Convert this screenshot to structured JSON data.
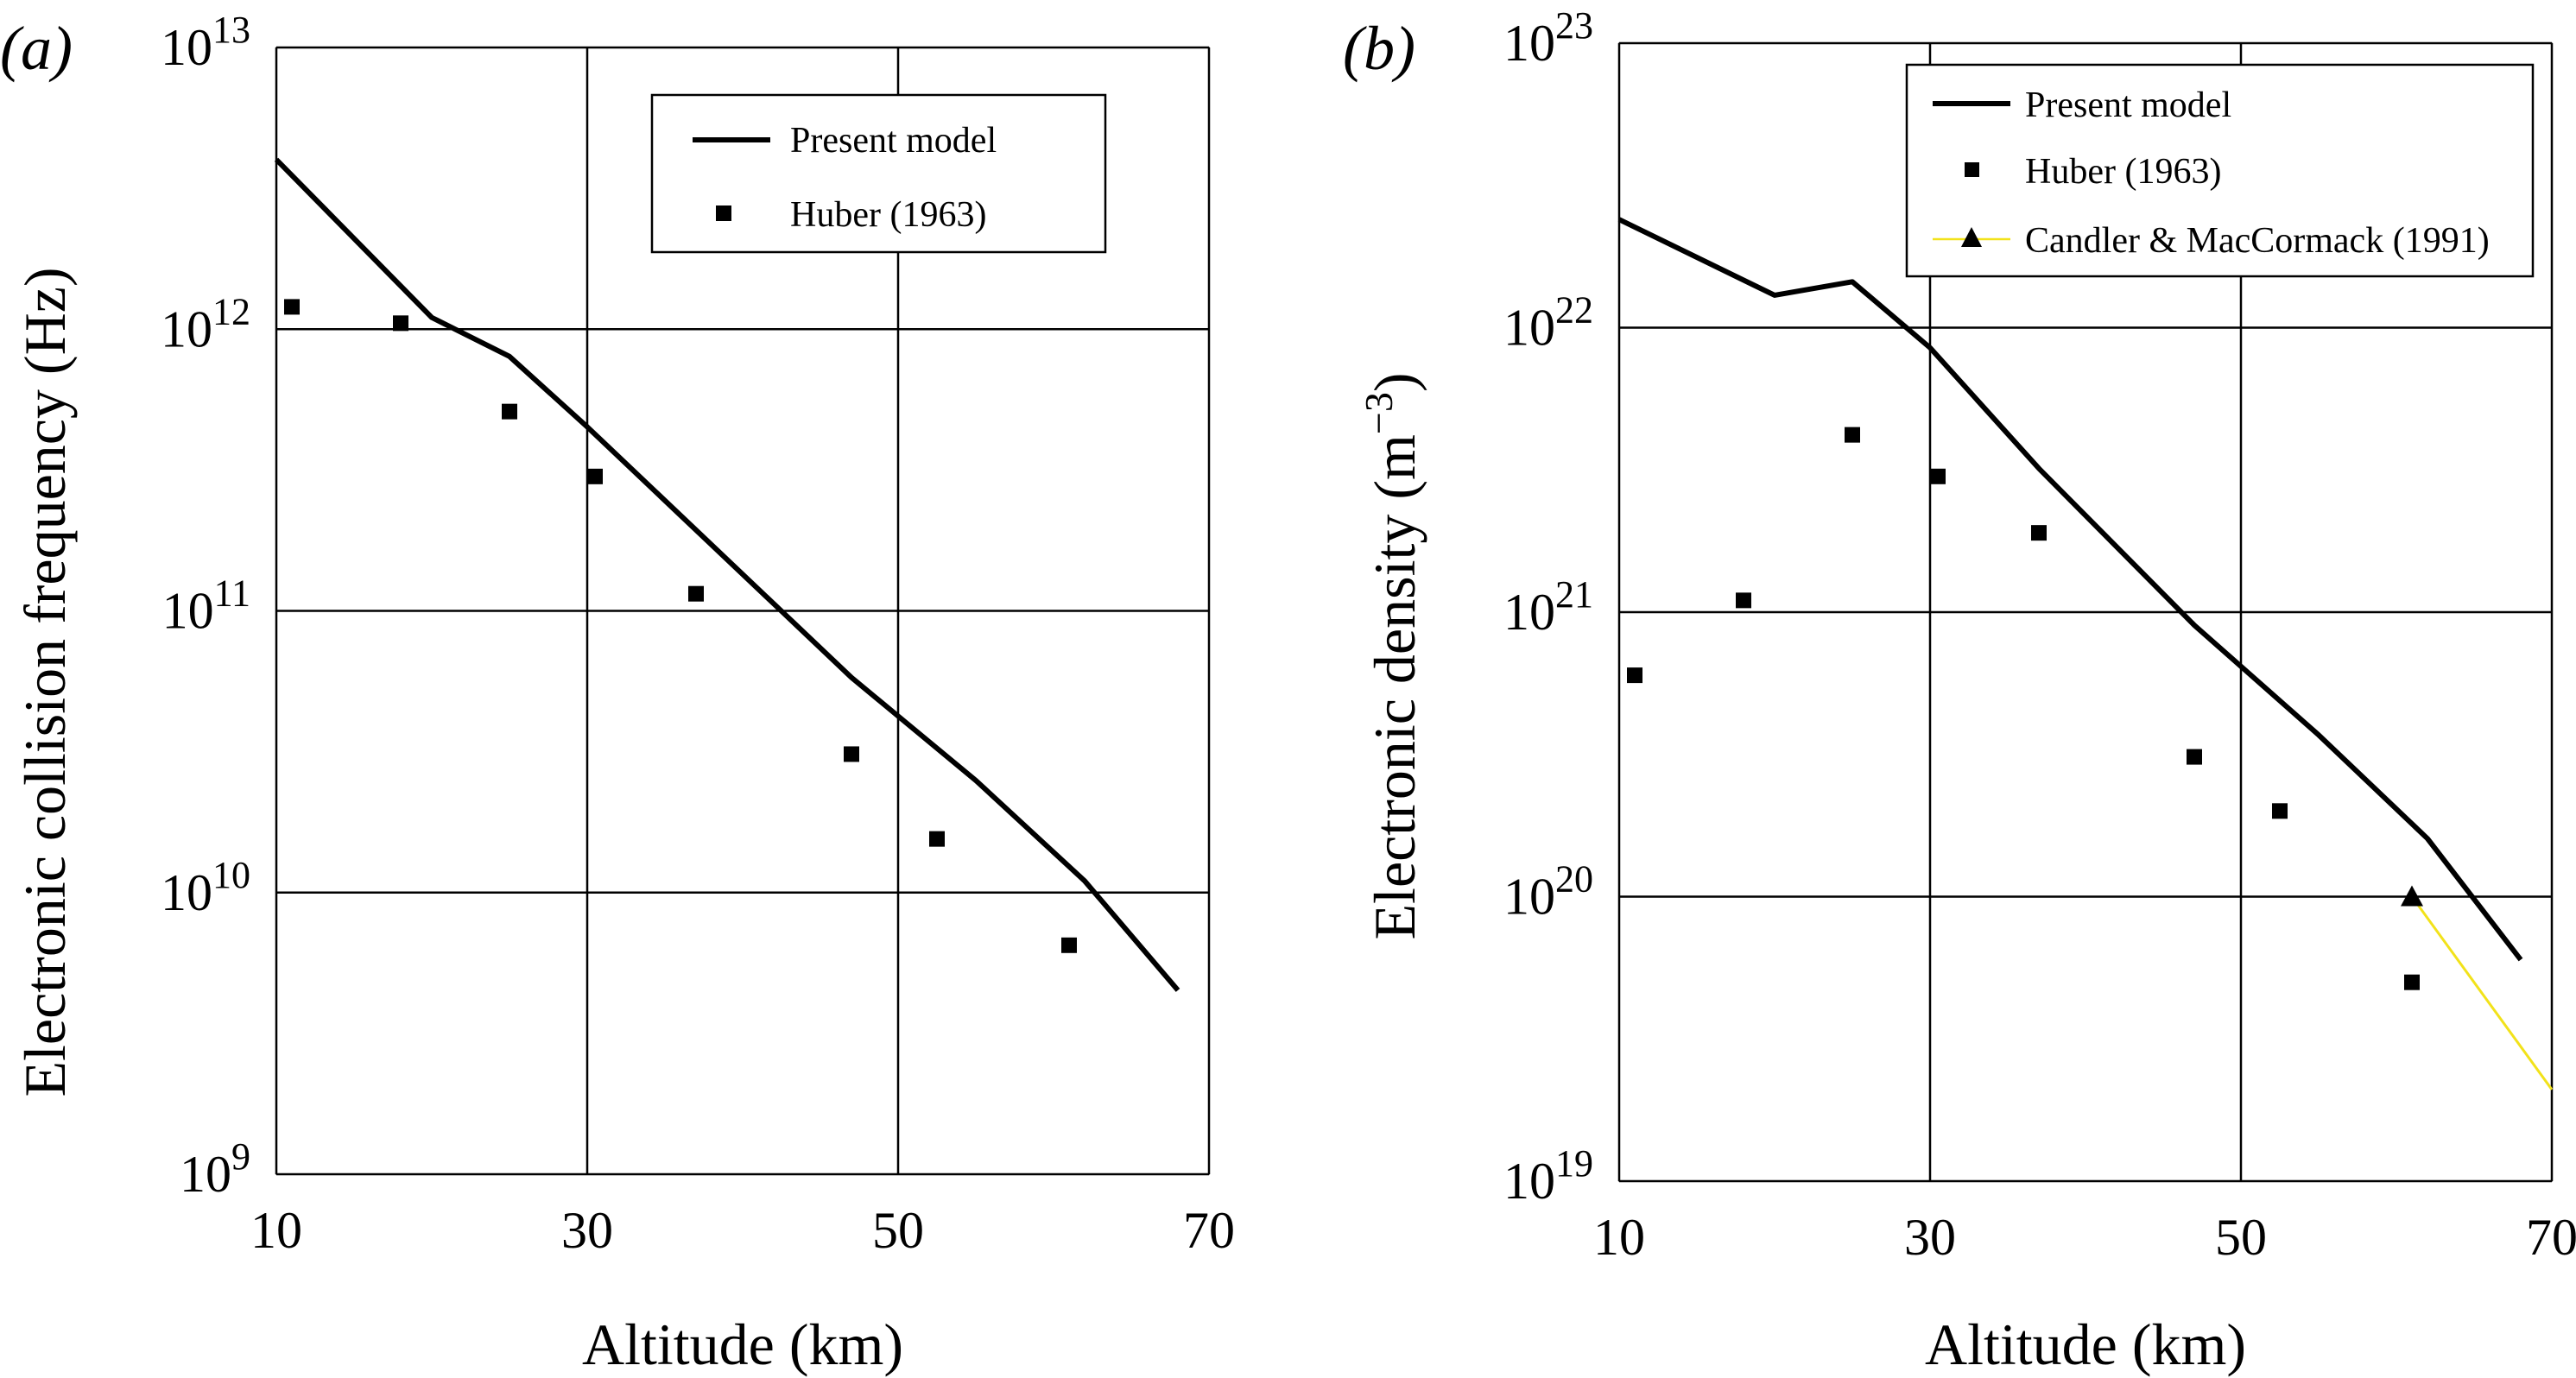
{
  "chart_data": [
    {
      "type": "scatter",
      "panel_label": "(a)",
      "xlabel": "Altitude (km)",
      "ylabel": "Electronic collision frequency (Hz)",
      "xlim": [
        10,
        70
      ],
      "ylim": [
        1000000000.0,
        10000000000000.0
      ],
      "y_scale": "log",
      "x_ticks": [
        "10",
        "30",
        "50",
        "70"
      ],
      "y_ticks": [
        {
          "base": "10",
          "exp": "9"
        },
        {
          "base": "10",
          "exp": "10"
        },
        {
          "base": "10",
          "exp": "11"
        },
        {
          "base": "10",
          "exp": "12"
        },
        {
          "base": "10",
          "exp": "13"
        }
      ],
      "grid": true,
      "legend_position": "top-right",
      "series": [
        {
          "name": "Present model",
          "style": "line",
          "color": "#000000",
          "x": [
            10,
            20,
            25,
            30,
            47,
            55,
            62,
            68
          ],
          "y": [
            4000000000000.0,
            1100000000000.0,
            800000000000.0,
            450000000000.0,
            58000000000.0,
            25000000000.0,
            11000000000.0,
            4500000000.0
          ]
        },
        {
          "name": "Huber (1963)",
          "style": "marker-square",
          "color": "#000000",
          "x": [
            11,
            18,
            25,
            30.5,
            37,
            47,
            52.5,
            61
          ],
          "y": [
            1200000000000.0,
            1050000000000.0,
            510000000000.0,
            300000000000.0,
            115000000000.0,
            31000000000.0,
            15500000000.0,
            6500000000.0
          ]
        }
      ]
    },
    {
      "type": "scatter",
      "panel_label": "(b)",
      "xlabel": "Altitude (km)",
      "ylabel_main": "Electronic density (m",
      "ylabel_exp": "−3",
      "ylabel_end": ")",
      "xlim": [
        10,
        70
      ],
      "ylim": [
        1e+19,
        1e+23
      ],
      "y_scale": "log",
      "x_ticks": [
        "10",
        "30",
        "50",
        "70"
      ],
      "y_ticks": [
        {
          "base": "10",
          "exp": "19"
        },
        {
          "base": "10",
          "exp": "20"
        },
        {
          "base": "10",
          "exp": "21"
        },
        {
          "base": "10",
          "exp": "22"
        },
        {
          "base": "10",
          "exp": "23"
        }
      ],
      "grid": true,
      "legend_position": "top-right",
      "series": [
        {
          "name": "Present model",
          "style": "line",
          "color": "#000000",
          "x": [
            10,
            20,
            25,
            30,
            37,
            47,
            55,
            62,
            68
          ],
          "y": [
            2.4e+22,
            1.3e+22,
            1.45e+22,
            8.5e+21,
            3.2e+21,
            9e+20,
            3.7e+20,
            1.6e+20,
            6e+19
          ]
        },
        {
          "name": "Huber (1963)",
          "style": "marker-square",
          "color": "#000000",
          "x": [
            11,
            18,
            25,
            30.5,
            37,
            47,
            52.5,
            61
          ],
          "y": [
            6e+20,
            1.1e+21,
            4.2e+21,
            3e+21,
            1.9e+21,
            3.1e+20,
            2e+20,
            5e+19
          ]
        },
        {
          "name": "Candler & MacCormack (1991)",
          "style": "line-triangle",
          "color": "#f2e21a",
          "marker_color": "#000000",
          "x": [
            61,
            70
          ],
          "y": [
            1e+20,
            2.1e+19
          ]
        }
      ]
    }
  ]
}
